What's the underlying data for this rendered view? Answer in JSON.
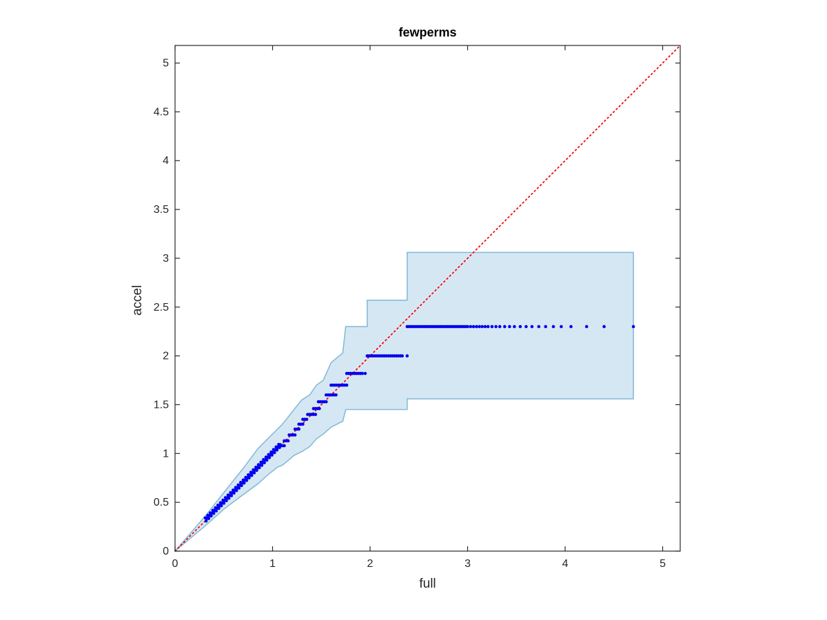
{
  "chart_data": {
    "type": "scatter",
    "title": "fewperms",
    "xlabel": "full",
    "ylabel": "accel",
    "xlim": [
      0,
      5.18
    ],
    "ylim": [
      0,
      5.18
    ],
    "xticks": [
      "0",
      "1",
      "2",
      "3",
      "4",
      "5"
    ],
    "yticks": [
      "0",
      "0.5",
      "1",
      "1.5",
      "2",
      "2.5",
      "3",
      "3.5",
      "4",
      "4.5",
      "5"
    ],
    "grid": false,
    "colors": {
      "points": "#0000ee",
      "band_fill": "#d6e7f4",
      "band_edge": "#86bbd8",
      "reference_line": "#ff0000",
      "axes": "#262626"
    },
    "reference_line": {
      "style": "dotted",
      "x": [
        0,
        5.18
      ],
      "y": [
        0,
        5.18
      ]
    },
    "band": {
      "x": [
        0,
        0.31,
        0.31,
        0.5,
        0.7,
        0.85,
        0.95,
        1.05,
        1.1,
        1.15,
        1.22,
        1.3,
        1.38,
        1.45,
        1.52,
        1.6,
        1.72,
        1.75,
        1.97,
        1.97,
        2.38,
        2.38,
        4.7
      ],
      "upper": [
        0,
        0.36,
        0.36,
        0.6,
        0.85,
        1.05,
        1.15,
        1.25,
        1.3,
        1.36,
        1.45,
        1.55,
        1.6,
        1.7,
        1.75,
        1.93,
        2.03,
        2.3,
        2.3,
        2.57,
        2.57,
        3.06,
        3.06
      ],
      "lower": [
        0,
        0.26,
        0.26,
        0.43,
        0.58,
        0.69,
        0.78,
        0.86,
        0.88,
        0.92,
        0.98,
        1.02,
        1.07,
        1.15,
        1.2,
        1.27,
        1.33,
        1.45,
        1.45,
        1.45,
        1.45,
        1.56,
        1.56
      ]
    },
    "series": [
      {
        "continuous": {
          "x_start": 0.31,
          "x_end": 1.08,
          "count": 90
        },
        "steps": [
          {
            "y": 1.08,
            "x": [
              1.08,
              1.1,
              1.12
            ]
          },
          {
            "y": 1.13,
            "x": [
              1.12,
              1.14,
              1.16
            ]
          },
          {
            "y": 1.19,
            "x": [
              1.17,
              1.19,
              1.21,
              1.23
            ]
          },
          {
            "y": 1.25,
            "x": [
              1.23,
              1.25,
              1.27
            ]
          },
          {
            "y": 1.3,
            "x": [
              1.27,
              1.29,
              1.31
            ]
          },
          {
            "y": 1.35,
            "x": [
              1.31,
              1.33,
              1.35
            ]
          },
          {
            "y": 1.4,
            "x": [
              1.36,
              1.38,
              1.4,
              1.42,
              1.44
            ]
          },
          {
            "y": 1.46,
            "x": [
              1.42,
              1.44,
              1.46,
              1.48
            ]
          },
          {
            "y": 1.53,
            "x": [
              1.47,
              1.49,
              1.51,
              1.53,
              1.55
            ]
          },
          {
            "y": 1.6,
            "x": [
              1.55,
              1.57,
              1.59,
              1.61,
              1.63,
              1.65
            ]
          },
          {
            "y": 1.7,
            "x": [
              1.6,
              1.62,
              1.64,
              1.66,
              1.68,
              1.7,
              1.72,
              1.74,
              1.76
            ]
          },
          {
            "y": 1.82,
            "x": [
              1.76,
              1.78,
              1.8,
              1.82,
              1.84,
              1.86,
              1.88,
              1.9,
              1.92,
              1.95
            ]
          },
          {
            "y": 2.0,
            "x": [
              1.97,
              1.99,
              2.01,
              2.03,
              2.05,
              2.07,
              2.09,
              2.11,
              2.13,
              2.15,
              2.17,
              2.19,
              2.21,
              2.23,
              2.25,
              2.27,
              2.29,
              2.31,
              2.33,
              2.38
            ]
          },
          {
            "y": 2.3,
            "x": [
              2.38,
              2.4,
              2.42,
              2.44,
              2.46,
              2.48,
              2.5,
              2.52,
              2.54,
              2.56,
              2.58,
              2.6,
              2.62,
              2.64,
              2.66,
              2.68,
              2.7,
              2.72,
              2.74,
              2.76,
              2.78,
              2.8,
              2.82,
              2.84,
              2.86,
              2.88,
              2.9,
              2.92,
              2.94,
              2.96,
              2.98,
              3.0,
              3.03,
              3.06,
              3.09,
              3.12,
              3.15,
              3.18,
              3.21,
              3.25,
              3.29,
              3.33,
              3.38,
              3.43,
              3.48,
              3.54,
              3.6,
              3.66,
              3.73,
              3.8,
              3.88,
              3.96,
              4.06,
              4.22,
              4.4,
              4.7
            ]
          }
        ]
      }
    ]
  }
}
